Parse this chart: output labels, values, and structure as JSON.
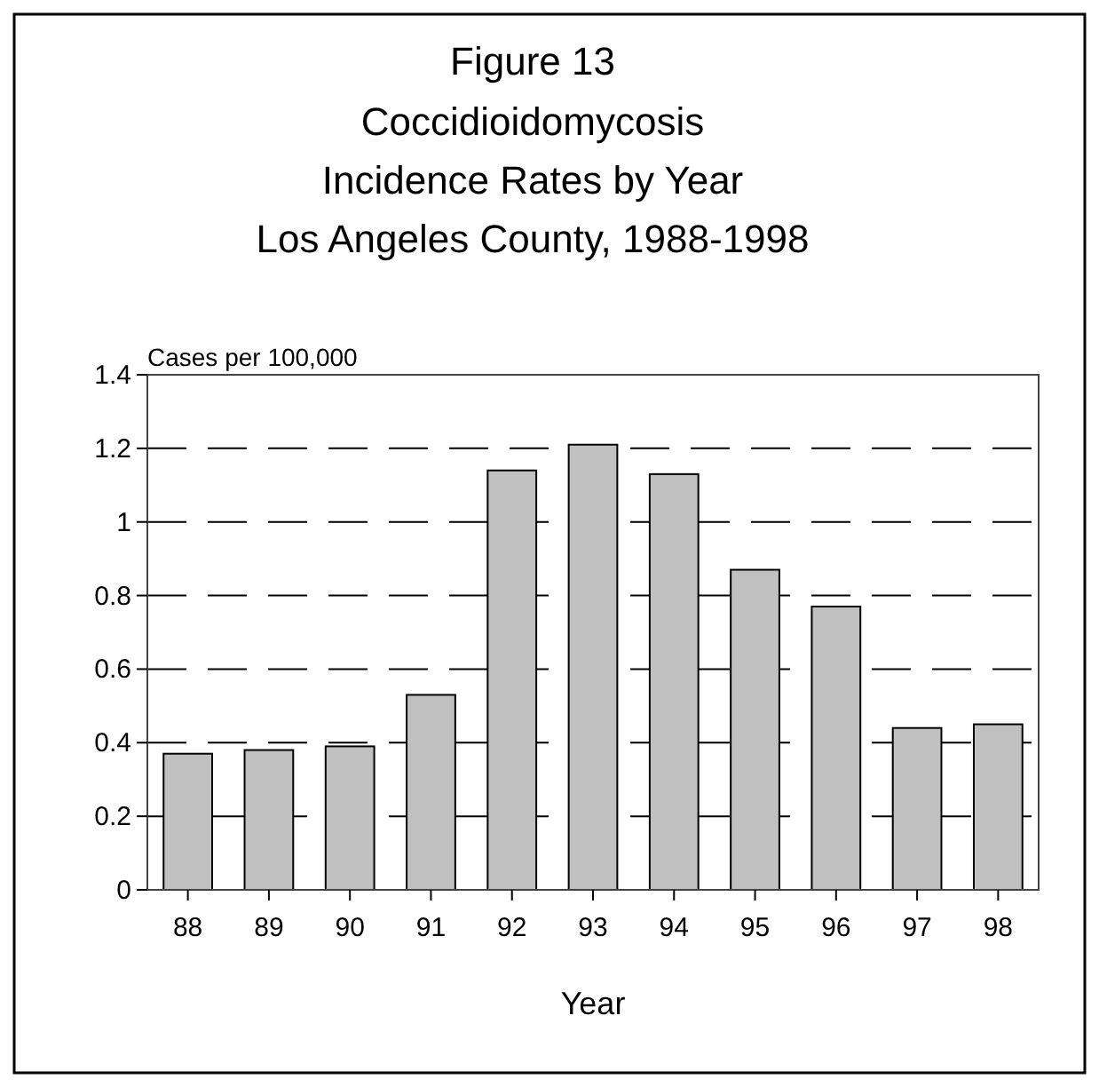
{
  "chart_data": {
    "type": "bar",
    "title": "Figure 13",
    "subtitle": "Coccidioidomycosis\nIncidence Rates by Year\nLos Angeles County, 1988-1998",
    "xlabel": "Year",
    "ylabel": "Cases per 100,000",
    "categories": [
      "88",
      "89",
      "90",
      "91",
      "92",
      "93",
      "94",
      "95",
      "96",
      "97",
      "98"
    ],
    "values": [
      0.37,
      0.38,
      0.39,
      0.53,
      1.14,
      1.21,
      1.13,
      0.87,
      0.77,
      0.44,
      0.45
    ],
    "color": "#c0c0c0",
    "ylim": [
      0,
      1.4
    ],
    "yticks": [
      0,
      0.2,
      0.4,
      0.6,
      0.8,
      {
        "value": 1,
        "label": "1"
      },
      1.2,
      1.4
    ],
    "grid": "y",
    "line_style": "dashed"
  }
}
